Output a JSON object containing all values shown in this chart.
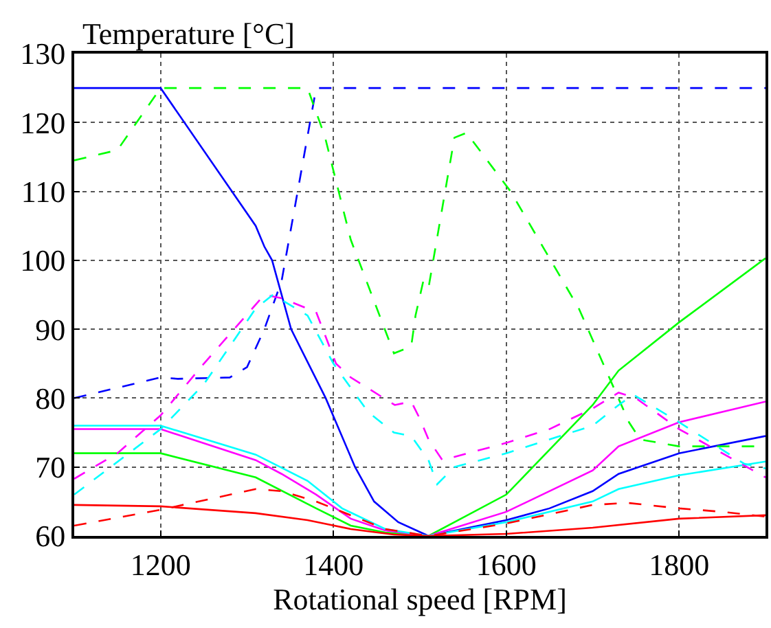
{
  "chart_data": {
    "type": "line",
    "xlabel": "Rotational speed [RPM]",
    "ylabel": "Temperature [°C]",
    "xlim": [
      1100,
      1900
    ],
    "ylim": [
      60,
      130
    ],
    "xticks": [
      1200,
      1400,
      1600,
      1800
    ],
    "yticks": [
      60,
      70,
      80,
      90,
      100,
      110,
      120,
      130
    ],
    "grid": true,
    "marker": "none",
    "series": [
      {
        "color": "#0000ff",
        "line_style": "solid",
        "x": [
          1100,
          1200,
          1310,
          1320,
          1329,
          1351,
          1391,
          1425,
          1447,
          1475,
          1510,
          1600,
          1650,
          1700,
          1730,
          1800,
          1900
        ],
        "values": [
          125,
          125,
          105,
          102,
          100,
          90,
          80,
          70,
          65,
          62,
          60,
          62.3,
          64,
          66.5,
          69,
          72,
          74.5
        ]
      },
      {
        "color": "#00ff00",
        "line_style": "solid",
        "x": [
          1100,
          1200,
          1310,
          1380,
          1420,
          1460,
          1510,
          1600,
          1700,
          1730,
          1800,
          1900
        ],
        "values": [
          72,
          72,
          68.5,
          64,
          61.5,
          60.5,
          60,
          66,
          79,
          84,
          91,
          100.3
        ]
      },
      {
        "color": "#ff00ff",
        "line_style": "solid",
        "x": [
          1100,
          1200,
          1310,
          1340,
          1380,
          1420,
          1460,
          1510,
          1600,
          1700,
          1730,
          1800,
          1900
        ],
        "values": [
          75.5,
          75.5,
          71,
          69,
          66,
          62.5,
          60.8,
          60,
          63.5,
          69.5,
          73,
          76.5,
          79.5
        ]
      },
      {
        "color": "#00ffff",
        "line_style": "solid",
        "x": [
          1100,
          1200,
          1310,
          1370,
          1410,
          1460,
          1510,
          1600,
          1700,
          1730,
          1800,
          1900
        ],
        "values": [
          76,
          76,
          71.8,
          68,
          64,
          61,
          60,
          62,
          65,
          66.8,
          68.8,
          70.8
        ]
      },
      {
        "color": "#ff0000",
        "line_style": "solid",
        "x": [
          1100,
          1200,
          1310,
          1370,
          1420,
          1470,
          1510,
          1600,
          1700,
          1800,
          1900
        ],
        "values": [
          64.5,
          64.3,
          63.3,
          62.3,
          61,
          60.2,
          60,
          60.3,
          61.2,
          62.5,
          63
        ]
      },
      {
        "color": "#0000ff",
        "line_style": "dashed",
        "x": [
          1100,
          1200,
          1220,
          1280,
          1300,
          1320,
          1340,
          1380,
          1900
        ],
        "values": [
          80,
          83,
          82.8,
          83,
          84.5,
          90,
          97,
          125,
          125
        ]
      },
      {
        "color": "#00ff00",
        "line_style": "dashed",
        "x": [
          1100,
          1150,
          1200,
          1370,
          1390,
          1420,
          1470,
          1490,
          1495,
          1504,
          1510,
          1540,
          1554,
          1605,
          1684,
          1742,
          1755,
          1800,
          1900
        ],
        "values": [
          114.5,
          116,
          125,
          125,
          118,
          103,
          86.5,
          87.5,
          92,
          97,
          96,
          117.8,
          118.5,
          110,
          93,
          76.5,
          74,
          73,
          73
        ]
      },
      {
        "color": "#ff00ff",
        "line_style": "dashed",
        "x": [
          1100,
          1150,
          1200,
          1250,
          1320,
          1340,
          1380,
          1403,
          1420,
          1471,
          1490,
          1500,
          1510,
          1526,
          1600,
          1650,
          1700,
          1730,
          1750,
          1800,
          1850,
          1900
        ],
        "values": [
          68.3,
          72,
          77.5,
          85,
          95,
          94.5,
          92.5,
          85,
          83,
          79,
          79.5,
          77,
          74,
          71,
          73.5,
          75.5,
          78.5,
          80.8,
          80,
          75.5,
          72,
          68.5
        ]
      },
      {
        "color": "#00ffff",
        "line_style": "dashed",
        "x": [
          1100,
          1200,
          1250,
          1310,
          1330,
          1370,
          1400,
          1440,
          1470,
          1490,
          1510,
          1520,
          1540,
          1600,
          1700,
          1730,
          1747,
          1800,
          1875,
          1900
        ],
        "values": [
          66,
          75.5,
          82,
          93,
          95,
          92,
          85,
          78,
          75,
          74.5,
          71,
          67.5,
          70,
          72,
          76,
          79,
          80.5,
          76.5,
          70.5,
          69.8
        ]
      },
      {
        "color": "#ff0000",
        "line_style": "dashed",
        "x": [
          1100,
          1200,
          1310,
          1340,
          1380,
          1420,
          1460,
          1500,
          1510,
          1600,
          1700,
          1740,
          1800,
          1850,
          1900
        ],
        "values": [
          61.5,
          63.8,
          66.8,
          66.5,
          65,
          63,
          61,
          60.2,
          60,
          61.8,
          64.5,
          64.8,
          64,
          63.5,
          62.8
        ]
      }
    ]
  }
}
